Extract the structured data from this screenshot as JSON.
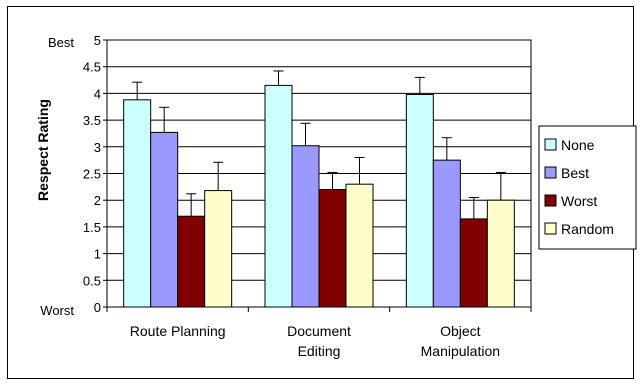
{
  "chart_data": {
    "type": "bar",
    "title": "",
    "xlabel": "",
    "ylabel": "Respect Rating",
    "ylim": [
      0,
      5
    ],
    "yticks": [
      0,
      0.5,
      1,
      1.5,
      2,
      2.5,
      3,
      3.5,
      4,
      4.5,
      5
    ],
    "ytick_labels": [
      "0",
      "0.5",
      "1",
      "1.5",
      "2",
      "2.5",
      "3",
      "3.5",
      "4",
      "4.5",
      "5"
    ],
    "y_end_labels": {
      "top": "Best",
      "bottom": "Worst"
    },
    "grid": "horizontal",
    "legend_position": "right",
    "categories": [
      [
        "Route Planning"
      ],
      [
        "Document",
        "Editing"
      ],
      [
        "Object",
        "Manipulation"
      ]
    ],
    "series": [
      {
        "name": "None",
        "color": "#ccffff",
        "values": [
          3.88,
          4.15,
          3.98
        ],
        "errors": [
          0.33,
          0.27,
          0.32
        ]
      },
      {
        "name": "Best",
        "color": "#9999ff",
        "values": [
          3.27,
          3.02,
          2.75
        ],
        "errors": [
          0.47,
          0.42,
          0.42
        ]
      },
      {
        "name": "Worst",
        "color": "#800000",
        "values": [
          1.7,
          2.2,
          1.65
        ],
        "errors": [
          0.42,
          0.32,
          0.4
        ]
      },
      {
        "name": "Random",
        "color": "#ffffcc",
        "values": [
          2.18,
          2.3,
          2.0
        ],
        "errors": [
          0.53,
          0.5,
          0.52
        ]
      }
    ]
  }
}
